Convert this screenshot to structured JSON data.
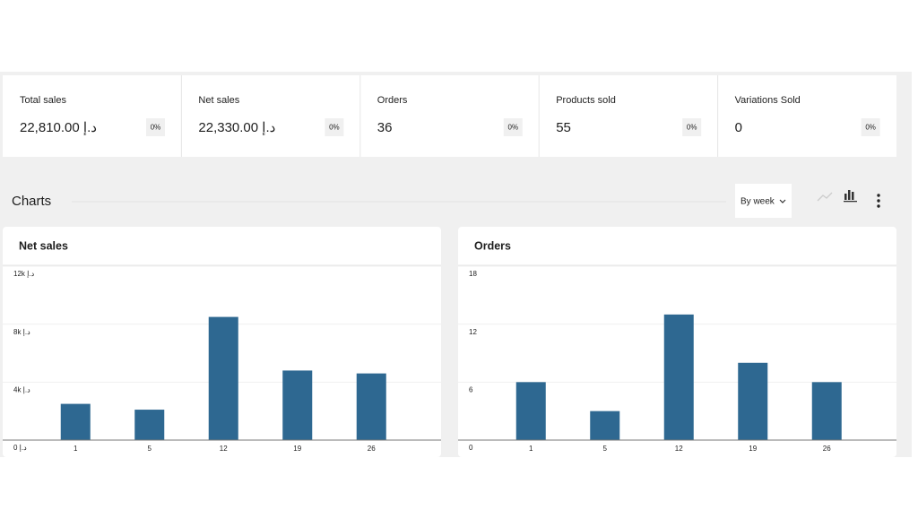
{
  "cards": [
    {
      "label": "Total sales",
      "value": "22,810.00 د.إ",
      "delta": "0%"
    },
    {
      "label": "Net sales",
      "value": "22,330.00 د.إ",
      "delta": "0%"
    },
    {
      "label": "Orders",
      "value": "36",
      "delta": "0%"
    },
    {
      "label": "Products sold",
      "value": "55",
      "delta": "0%"
    },
    {
      "label": "Variations Sold",
      "value": "0",
      "delta": "0%"
    }
  ],
  "section_title": "Charts",
  "interval": "By week",
  "chart_data": [
    {
      "type": "bar",
      "title": "Net sales",
      "categories": [
        "1",
        "5",
        "12",
        "19",
        "26"
      ],
      "values": [
        2500,
        2100,
        8500,
        4800,
        4600
      ],
      "color": "#2e6891",
      "ylim": [
        0,
        12000
      ],
      "yticks": [
        {
          "value": 0,
          "label": "0 د.إ"
        },
        {
          "value": 4000,
          "label": "4k د.إ"
        },
        {
          "value": 8000,
          "label": "8k د.إ"
        },
        {
          "value": 12000,
          "label": "12k د.إ"
        }
      ],
      "grid": true
    },
    {
      "type": "bar",
      "title": "Orders",
      "categories": [
        "1",
        "5",
        "12",
        "19",
        "26"
      ],
      "values": [
        6,
        3,
        13,
        8,
        6
      ],
      "color": "#2e6891",
      "ylim": [
        0,
        18
      ],
      "yticks": [
        0,
        6,
        12,
        18
      ],
      "grid": true
    }
  ]
}
